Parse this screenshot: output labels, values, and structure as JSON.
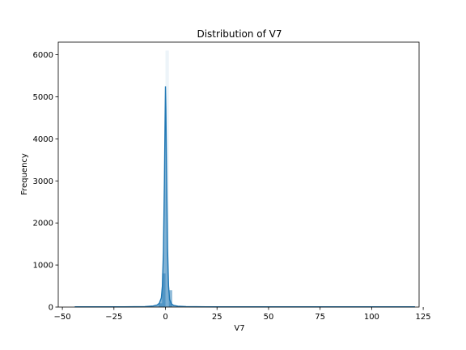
{
  "chart_data": {
    "type": "area",
    "title": "Distribution of V7",
    "xlabel": "V7",
    "ylabel": "Frequency",
    "xlim": [
      -52,
      123
    ],
    "ylim": [
      0,
      6300
    ],
    "x_ticks": [
      -50,
      -25,
      0,
      25,
      50,
      75,
      100,
      125
    ],
    "y_ticks": [
      0,
      1000,
      2000,
      3000,
      4000,
      5000,
      6000
    ],
    "grid": false,
    "legend": "none",
    "series": [
      {
        "color": "#1f77b4",
        "fill_color": "#1f77b4",
        "x": [
          -44,
          -20,
          -10,
          -6,
          -4,
          -3,
          -2,
          -1.5,
          -1,
          -0.5,
          -0.2,
          0,
          0.2,
          0.5,
          1,
          1.5,
          2,
          3,
          4,
          6,
          10,
          25,
          50,
          100,
          121
        ],
        "y": [
          5,
          5,
          10,
          25,
          50,
          90,
          220,
          500,
          1300,
          3000,
          4400,
          5250,
          4700,
          3400,
          1400,
          500,
          180,
          70,
          40,
          20,
          10,
          5,
          5,
          5,
          5
        ]
      }
    ],
    "histogram_bars": {
      "bin_width": 1.64,
      "bins": [
        {
          "x0": -3.28,
          "height": 90
        },
        {
          "x0": -1.64,
          "height": 800
        },
        {
          "x0": 0,
          "height": 6100
        },
        {
          "x0": 1.64,
          "height": 400
        }
      ]
    }
  }
}
